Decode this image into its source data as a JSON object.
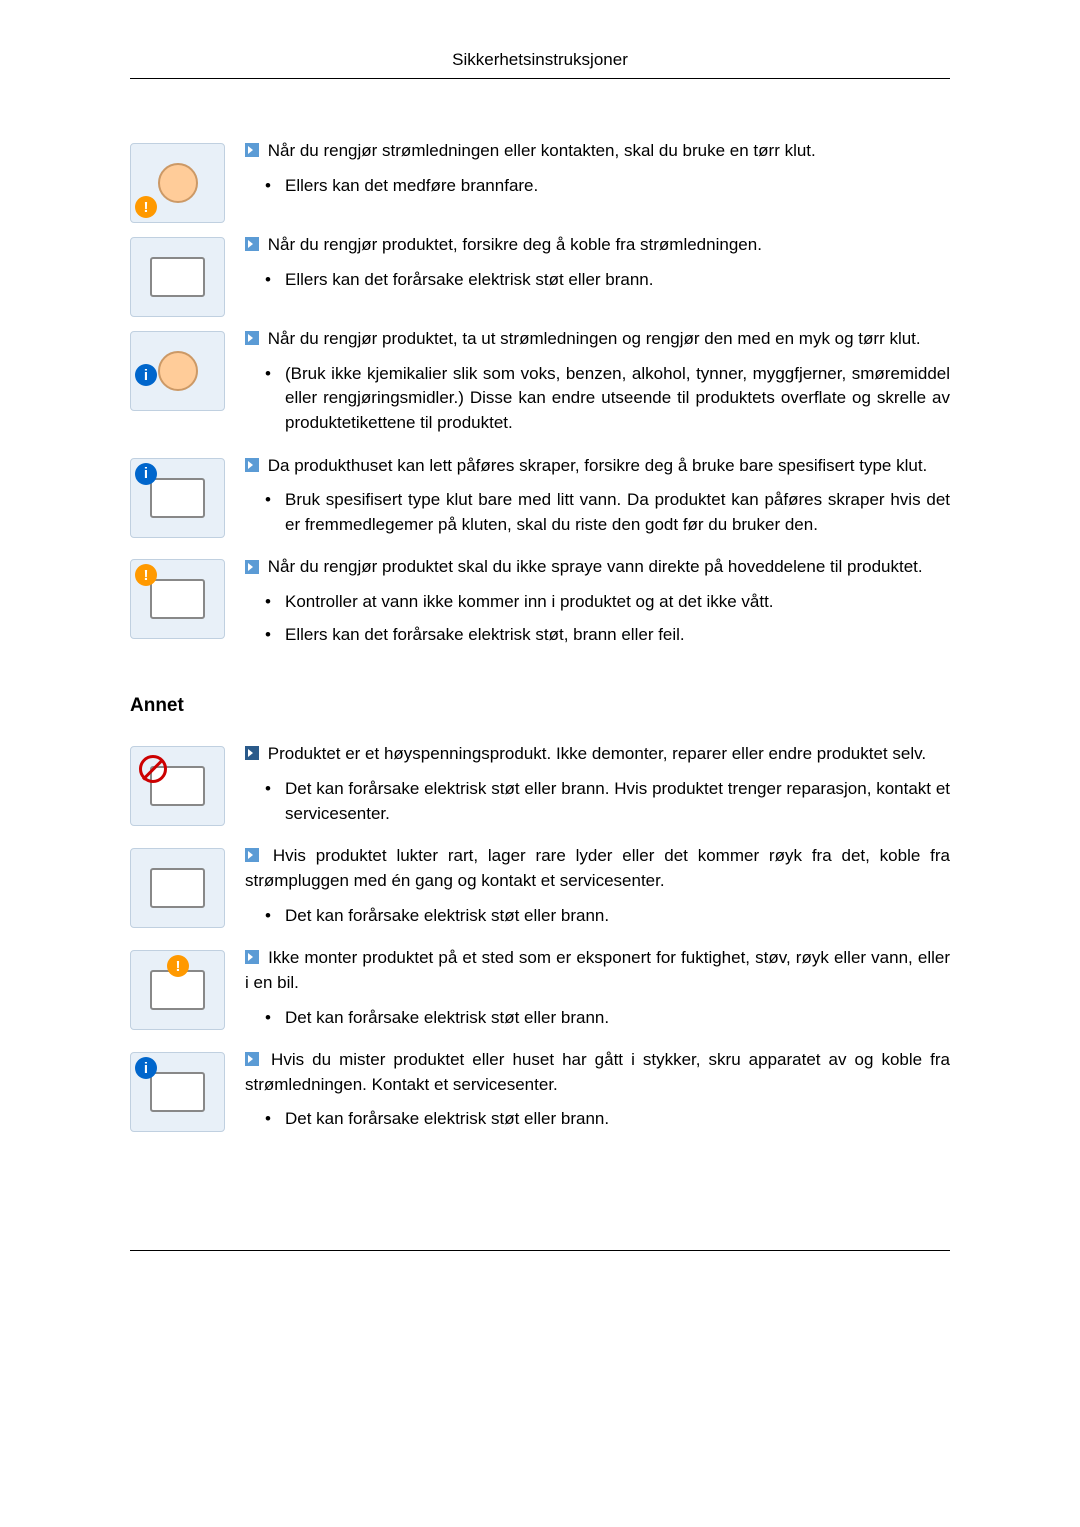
{
  "header": {
    "title": "Sikkerhetsinstruksjoner"
  },
  "section1_heading": "Annet",
  "instructions": [
    {
      "icon": "clean-plug",
      "arrow_style": "light",
      "main": "Når du rengjør strømledningen eller kontakten, skal du bruke en tørr klut.",
      "subs": [
        "Ellers kan det medføre brannfare."
      ]
    },
    {
      "icon": "unplug-monitor",
      "arrow_style": "light",
      "main": "Når du rengjør produktet, forsikre deg å koble fra strømledningen.",
      "subs": [
        "Ellers kan det forårsake elektrisk støt eller brann."
      ]
    },
    {
      "icon": "clean-cloth",
      "arrow_style": "light",
      "main": "Når du rengjør produktet, ta ut strømledningen og rengjør den med en myk og tørr klut.",
      "subs": [
        "(Bruk ikke kjemikalier slik som voks, benzen, alkohol, tynner, myggfjerner, smøremiddel eller rengjøringsmidler.) Disse kan endre utseende til produktets overflate og skrelle av produktetikettene til produktet."
      ]
    },
    {
      "icon": "wipe-screen",
      "arrow_style": "light",
      "main": "Da produkthuset kan lett påføres skraper, forsikre deg å bruke bare spesifisert type klut.",
      "subs": [
        "Bruk spesifisert type klut bare med litt vann. Da produktet kan påføres skraper hvis det er fremmedlegemer på kluten, skal du riste den godt før du bruker den."
      ]
    },
    {
      "icon": "no-spray",
      "arrow_style": "light",
      "main": "Når du rengjør produktet skal du ikke spraye vann direkte på hoveddelene til produktet.",
      "subs": [
        "Kontroller at vann ikke kommer inn i produktet og at det ikke vått.",
        "Ellers kan det forårsake elektrisk støt, brann eller feil."
      ]
    }
  ],
  "instructions2": [
    {
      "icon": "no-disassemble",
      "arrow_style": "dark",
      "main": "Produktet er et høyspenningsprodukt. Ikke demonter, reparer eller endre produktet selv.",
      "subs": [
        "Det kan forårsake elektrisk støt eller brann. Hvis produktet trenger reparasjon, kontakt et servicesenter."
      ]
    },
    {
      "icon": "smoke-monitor",
      "arrow_style": "light",
      "main": "Hvis produktet lukter rart, lager rare lyder eller det kommer røyk fra det, koble fra strømpluggen med én gang og kontakt et servicesenter.",
      "subs": [
        "Det kan forårsake elektrisk støt eller brann."
      ]
    },
    {
      "icon": "no-humidity",
      "arrow_style": "light",
      "main": "Ikke monter produktet på et sted som er eksponert for fuktighet, støv, røyk eller vann, eller i en bil.",
      "subs": [
        "Det kan forårsake elektrisk støt eller brann."
      ]
    },
    {
      "icon": "dropped-monitor",
      "arrow_style": "light",
      "main": "Hvis du mister produktet eller huset har gått i stykker, skru apparatet av og koble fra strømledningen. Kontakt et servicesenter.",
      "subs": [
        "Det kan forårsake elektrisk støt eller brann."
      ]
    }
  ]
}
